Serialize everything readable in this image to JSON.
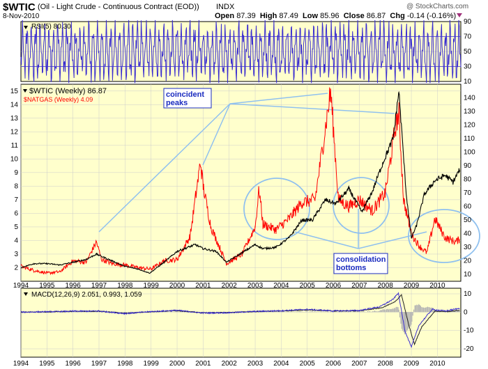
{
  "header": {
    "symbol": "$WTIC",
    "description": "(Oil - Light Crude - Continuous Contract (EOD))",
    "exchange": "INDX",
    "watermark": "@ StockCharts.com",
    "date": "8-Nov-2010",
    "quote": {
      "open_label": "Open",
      "open": "87.39",
      "high_label": "High",
      "high": "87.49",
      "low_label": "Low",
      "low": "85.96",
      "close_label": "Close",
      "close": "86.87",
      "chg_label": "Chg",
      "chg": "-0.14 (-0.16%)"
    }
  },
  "colors": {
    "panel_bg": "#ffffcc",
    "wtic_line": "#000000",
    "natgas_line": "#ff0000",
    "rsi_line": "#3a2dd0",
    "annotation_line": "#8fc0ef",
    "annotation_text": "#1a2bbf",
    "macd_hist": "#b3b3b3",
    "signal_line": "#1f1f1f",
    "grid": "#cccccc"
  },
  "annotations": {
    "peaks_label": [
      "coincident",
      "peaks"
    ],
    "bottoms_label": [
      "consolidation",
      "bottoms"
    ]
  },
  "chart_data": [
    {
      "type": "line",
      "panel": "rsi",
      "title": "RSI(5) 80.30",
      "ylim": [
        10,
        90
      ],
      "yticks": [
        10,
        30,
        50,
        70,
        90
      ],
      "guide_lines": [
        30,
        70
      ],
      "grid": true
    },
    {
      "type": "line",
      "panel": "price",
      "legend_position": "top-left",
      "x_unit": "year",
      "xlim": [
        1994,
        2010.9
      ],
      "xticks": [
        "1994",
        "1995",
        "1996",
        "1997",
        "1998",
        "1999",
        "2000",
        "2001",
        "2002",
        "2003",
        "2004",
        "2005",
        "2006",
        "2007",
        "2008",
        "2009",
        "2010"
      ],
      "y_left": {
        "ticks": [
          2,
          3,
          4,
          5,
          6,
          7,
          8,
          9,
          10,
          11,
          12,
          13,
          14,
          15
        ],
        "ylim": [
          1,
          15.5
        ]
      },
      "y_right": {
        "ticks": [
          10,
          20,
          30,
          40,
          50,
          60,
          70,
          80,
          90,
          100,
          110,
          120,
          130,
          140
        ],
        "ylim": [
          5,
          150
        ]
      },
      "grid": true,
      "series": [
        {
          "name": "$WTIC (Weekly) 86.87",
          "axis": "right",
          "x": [
            1994.0,
            1994.5,
            1995.0,
            1995.5,
            1996.0,
            1996.5,
            1996.9,
            1997.5,
            1998.0,
            1998.5,
            1998.95,
            1999.5,
            2000.0,
            2000.7,
            2001.0,
            2001.5,
            2001.9,
            2002.5,
            2003.0,
            2003.3,
            2003.8,
            2004.3,
            2004.8,
            2005.2,
            2005.7,
            2006.1,
            2006.6,
            2007.1,
            2007.5,
            2007.9,
            2008.3,
            2008.52,
            2008.8,
            2009.0,
            2009.2,
            2009.5,
            2009.9,
            2010.3,
            2010.6,
            2010.85
          ],
          "values": [
            15,
            18,
            18,
            17,
            19,
            21,
            25,
            20,
            16,
            14,
            11,
            19,
            27,
            32,
            29,
            27,
            19,
            26,
            32,
            29,
            30,
            37,
            50,
            50,
            65,
            62,
            73,
            56,
            71,
            92,
            110,
            145,
            70,
            37,
            46,
            69,
            79,
            83,
            78,
            87
          ]
        },
        {
          "name": "$NATGAS (Weekly) 4.09",
          "axis": "left",
          "x": [
            1994.0,
            1994.5,
            1995.0,
            1995.5,
            1996.0,
            1996.5,
            1996.9,
            1997.1,
            1997.5,
            1998.0,
            1998.5,
            1999.0,
            1999.5,
            2000.0,
            2000.5,
            2000.9,
            2001.0,
            2001.3,
            2001.9,
            2002.5,
            2003.0,
            2003.15,
            2003.3,
            2003.8,
            2004.3,
            2004.8,
            2005.3,
            2005.9,
            2006.2,
            2006.6,
            2007.0,
            2007.5,
            2008.0,
            2008.4,
            2008.52,
            2008.7,
            2009.0,
            2009.3,
            2009.6,
            2009.9,
            2010.3,
            2010.7,
            2010.85
          ],
          "values": [
            2.1,
            1.8,
            1.6,
            1.7,
            2.5,
            2.4,
            3.9,
            2.6,
            2.3,
            2.2,
            2.0,
            1.9,
            2.5,
            2.6,
            4.3,
            9.8,
            8.0,
            5.0,
            2.3,
            3.0,
            5.0,
            7.8,
            5.2,
            4.8,
            5.6,
            6.8,
            7.0,
            15.0,
            7.0,
            6.5,
            7.0,
            6.2,
            7.5,
            12.5,
            13.3,
            7.0,
            4.5,
            3.6,
            3.1,
            5.6,
            4.2,
            3.9,
            4.09
          ]
        }
      ]
    },
    {
      "type": "line",
      "panel": "macd",
      "title": "MACD(12,26,9) 2.051, 0.993, 1.059",
      "ylim": [
        -20,
        10
      ],
      "yticks": [
        -20,
        -10,
        0,
        10
      ],
      "xticks": [
        "1994",
        "1995",
        "1996",
        "1997",
        "1998",
        "1999",
        "2000",
        "2001",
        "2002",
        "2003",
        "2004",
        "2005",
        "2006",
        "2007",
        "2008",
        "2009",
        "2010"
      ],
      "grid": true,
      "series": [
        {
          "name": "MACD",
          "x": [
            1994,
            1995,
            1996,
            1997,
            1998,
            1999,
            2000,
            2001,
            2002,
            2003,
            2004,
            2005,
            2006,
            2007,
            2007.8,
            2008.3,
            2008.5,
            2008.75,
            2009.0,
            2009.3,
            2009.8,
            2010.3,
            2010.85
          ],
          "values": [
            0,
            0.2,
            0.5,
            0.6,
            -0.8,
            0.3,
            1.0,
            -0.5,
            -0.3,
            0.4,
            0.8,
            1.5,
            0.7,
            0.9,
            3.0,
            7.0,
            10.5,
            -10.0,
            -19.0,
            -7.0,
            1.5,
            0.6,
            2.051
          ]
        },
        {
          "name": "Signal",
          "x": [
            1994,
            1995,
            1996,
            1997,
            1998,
            1999,
            2000,
            2001,
            2002,
            2003,
            2004,
            2005,
            2006,
            2007,
            2007.9,
            2008.4,
            2008.62,
            2008.9,
            2009.12,
            2009.4,
            2009.9,
            2010.4,
            2010.85
          ],
          "values": [
            0,
            0.1,
            0.4,
            0.5,
            -0.6,
            0.2,
            0.8,
            -0.4,
            -0.2,
            0.3,
            0.6,
            1.2,
            0.6,
            0.7,
            2.5,
            6.0,
            9.5,
            -7.0,
            -17.5,
            -8.0,
            0.5,
            0.3,
            0.993
          ]
        }
      ]
    }
  ]
}
